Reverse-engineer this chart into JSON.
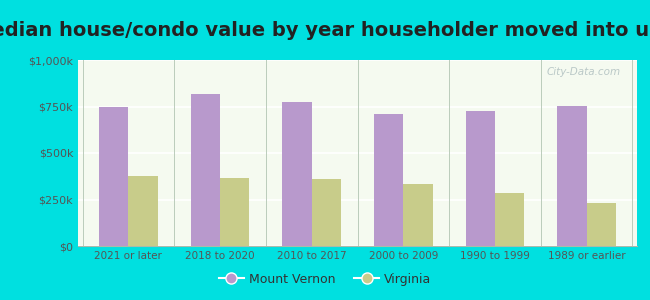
{
  "title": "Median house/condo value by year householder moved into unit",
  "categories": [
    "2021 or later",
    "2018 to 2020",
    "2010 to 2017",
    "2000 to 2009",
    "1990 to 1999",
    "1989 or earlier"
  ],
  "mount_vernon": [
    750000,
    815000,
    775000,
    710000,
    725000,
    755000
  ],
  "virginia": [
    375000,
    368000,
    358000,
    335000,
    285000,
    230000
  ],
  "bar_color_mv": "#b899cc",
  "bar_color_va": "#c8cc8a",
  "background_color": "#00e0e0",
  "plot_bg_top": "#f5faf0",
  "plot_bg_bottom": "#e8f5e0",
  "ylim": [
    0,
    1000000
  ],
  "yticks": [
    0,
    250000,
    500000,
    750000,
    1000000
  ],
  "ytick_labels": [
    "$0",
    "$250k",
    "$500k",
    "$750k",
    "$1,000k"
  ],
  "legend_mv": "Mount Vernon",
  "legend_va": "Virginia",
  "watermark": "City-Data.com",
  "title_fontsize": 14,
  "title_color": "#222222",
  "tick_color": "#555555",
  "grid_color": "#ccddcc"
}
